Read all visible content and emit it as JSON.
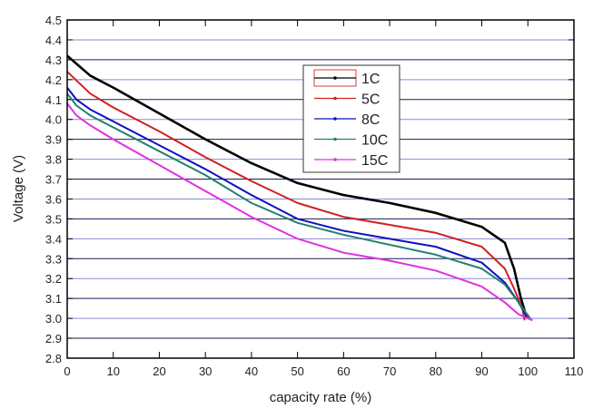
{
  "chart_data": {
    "type": "line",
    "title": "",
    "xlabel": "capacity rate (%)",
    "ylabel": "Voltage (V)",
    "xlim": [
      0,
      110
    ],
    "ylim": [
      2.8,
      4.5
    ],
    "xticks": [
      "0",
      "10",
      "20",
      "30",
      "40",
      "50",
      "60",
      "70",
      "80",
      "90",
      "100",
      "110"
    ],
    "yticks": [
      "2.8",
      "2.9",
      "3.0",
      "3.1",
      "3.2",
      "3.3",
      "3.4",
      "3.5",
      "3.6",
      "3.7",
      "3.8",
      "3.9",
      "4.0",
      "4.1",
      "4.2",
      "4.3",
      "4.4",
      "4.5"
    ],
    "grid": true,
    "legend_position": "top-center",
    "series": [
      {
        "name": "1C",
        "color": "#000000",
        "x": [
          0,
          5,
          10,
          20,
          30,
          40,
          50,
          60,
          70,
          80,
          90,
          95,
          97,
          98.5,
          99.8
        ],
        "y": [
          4.32,
          4.22,
          4.16,
          4.03,
          3.9,
          3.78,
          3.68,
          3.62,
          3.58,
          3.53,
          3.46,
          3.38,
          3.25,
          3.1,
          3.0
        ]
      },
      {
        "name": "5C",
        "color": "#d02020",
        "x": [
          0,
          5,
          10,
          20,
          30,
          40,
          50,
          60,
          70,
          80,
          90,
          95,
          97,
          98.8,
          99.3
        ],
        "y": [
          4.24,
          4.13,
          4.06,
          3.94,
          3.81,
          3.69,
          3.58,
          3.51,
          3.47,
          3.43,
          3.36,
          3.25,
          3.15,
          3.05,
          2.99
        ]
      },
      {
        "name": "8C",
        "color": "#1010c0",
        "x": [
          0,
          2,
          5,
          10,
          20,
          30,
          40,
          50,
          60,
          70,
          80,
          90,
          95,
          98,
          100
        ],
        "y": [
          4.16,
          4.1,
          4.05,
          3.99,
          3.87,
          3.75,
          3.62,
          3.5,
          3.44,
          3.4,
          3.36,
          3.28,
          3.18,
          3.08,
          3.0
        ]
      },
      {
        "name": "10C",
        "color": "#208070",
        "x": [
          0,
          2,
          5,
          10,
          20,
          30,
          40,
          50,
          60,
          70,
          80,
          90,
          95,
          98,
          100.5
        ],
        "y": [
          4.13,
          4.07,
          4.02,
          3.96,
          3.84,
          3.72,
          3.58,
          3.48,
          3.42,
          3.37,
          3.32,
          3.25,
          3.17,
          3.08,
          3.0
        ]
      },
      {
        "name": "15C",
        "color": "#e030e0",
        "x": [
          0,
          2,
          5,
          10,
          20,
          30,
          40,
          50,
          60,
          70,
          80,
          90,
          95,
          98,
          101
        ],
        "y": [
          4.08,
          4.02,
          3.97,
          3.9,
          3.77,
          3.64,
          3.51,
          3.4,
          3.33,
          3.29,
          3.24,
          3.16,
          3.08,
          3.02,
          2.99
        ]
      }
    ]
  }
}
